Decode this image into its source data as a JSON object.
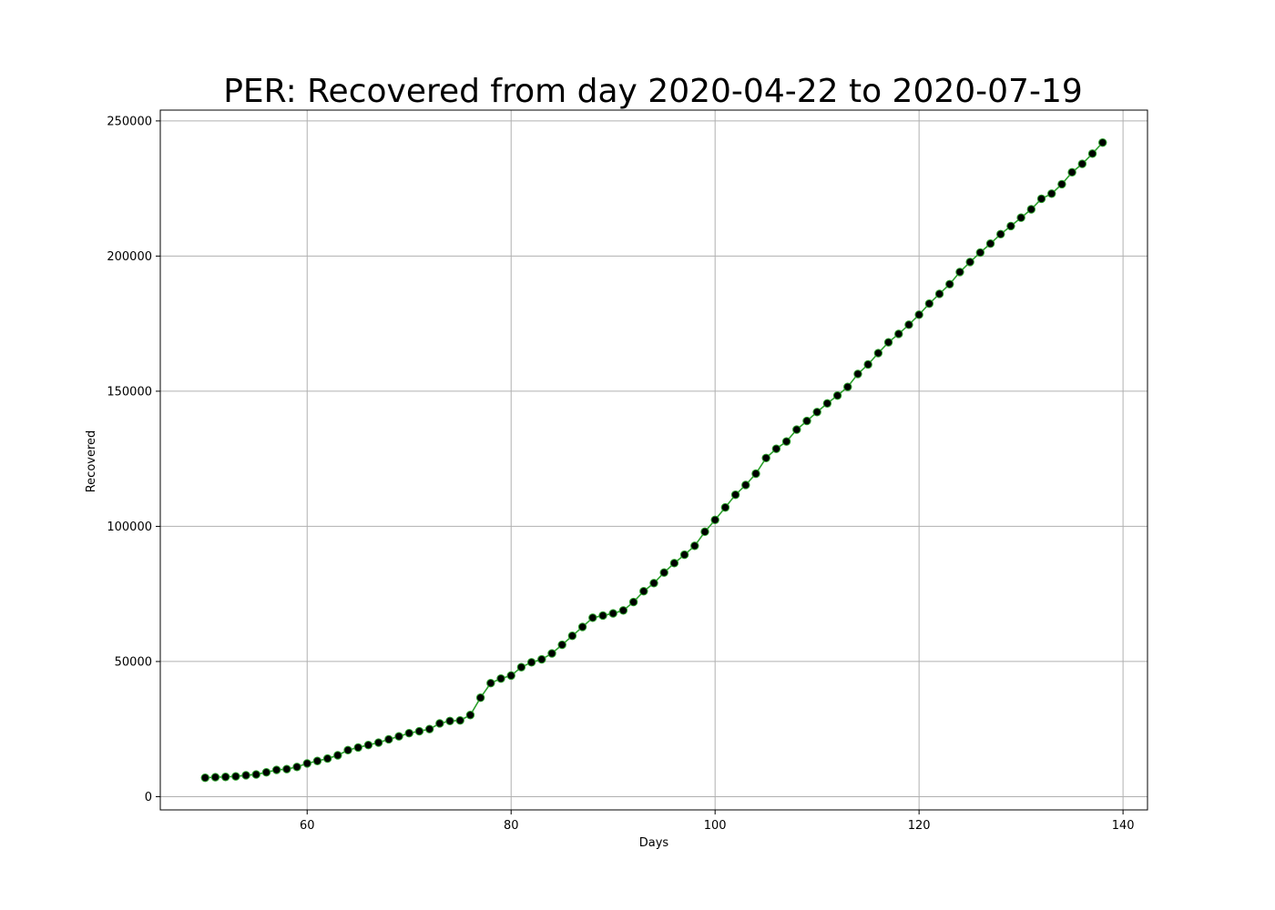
{
  "chart_data": {
    "type": "line",
    "title": "PER: Recovered from day 2020-04-22 to 2020-07-19",
    "xlabel": "Days",
    "ylabel": "Recovered",
    "xlim": [
      45.6,
      142.4
    ],
    "ylim": [
      -4900,
      254000
    ],
    "xticks": [
      60,
      80,
      100,
      120,
      140
    ],
    "yticks": [
      0,
      50000,
      100000,
      150000,
      200000,
      250000
    ],
    "grid": true,
    "colors": {
      "line": "#2ca02c",
      "marker": "#000000",
      "grid": "#b0b0b0"
    },
    "series": [
      {
        "x": [
          50,
          51,
          52,
          53,
          54,
          55,
          56,
          57,
          58,
          59,
          60,
          61,
          62,
          63,
          64,
          65,
          66,
          67,
          68,
          69,
          70,
          71,
          72,
          73,
          74,
          75,
          76,
          77,
          78,
          79,
          80,
          81,
          82,
          83,
          84,
          85,
          86,
          87,
          88,
          89,
          90,
          91,
          92,
          93,
          94,
          95,
          96,
          97,
          98,
          99,
          100,
          101,
          102,
          103,
          104,
          105,
          106,
          107,
          108,
          109,
          110,
          111,
          112,
          113,
          114,
          115,
          116,
          117,
          118,
          119,
          120,
          121,
          122,
          123,
          124,
          125,
          126,
          127,
          128,
          129,
          130,
          131,
          132,
          133,
          134,
          135,
          136,
          137,
          138
        ],
        "values": [
          7000,
          7200,
          7300,
          7500,
          7900,
          8200,
          9000,
          9900,
          10200,
          11000,
          12300,
          13200,
          14100,
          15300,
          17200,
          18200,
          19100,
          20000,
          21200,
          22300,
          23500,
          24200,
          25000,
          27100,
          28000,
          28200,
          30200,
          36600,
          42000,
          43700,
          44800,
          47900,
          49700,
          50800,
          53000,
          56200,
          59500,
          62800,
          66200,
          67000,
          67800,
          68900,
          72000,
          76000,
          79000,
          82900,
          86400,
          89500,
          92800,
          98000,
          102400,
          107000,
          111700,
          115300,
          119500,
          125300,
          128700,
          131400,
          135800,
          139000,
          142300,
          145500,
          148400,
          151600,
          156400,
          159900,
          164100,
          168100,
          171200,
          174600,
          178300,
          182400,
          186000,
          189600,
          194100,
          197800,
          201300,
          204600,
          208100,
          211100,
          214200,
          217300,
          221200,
          223100,
          226600,
          231000,
          234100,
          237900,
          242000
        ]
      }
    ]
  }
}
